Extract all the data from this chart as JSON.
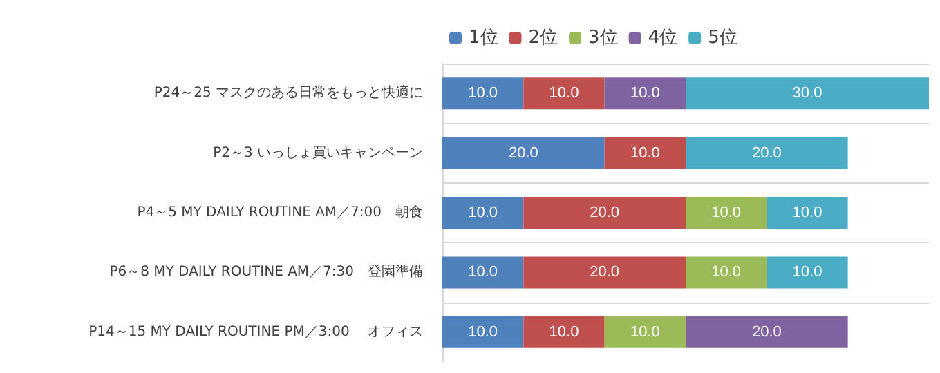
{
  "chart_data": {
    "type": "bar",
    "orientation": "horizontal",
    "stacked": true,
    "legend": "top",
    "grid": "y",
    "categories": [
      "P24～25 マスクのある日常をもっと快適に",
      "P2～3 いっしょ買いキャンペーン",
      "P4～5 MY DAILY ROUTINE AM／7:00　朝食",
      "P6～8 MY DAILY ROUTINE AM／7:30　登園準備",
      "P14～15 MY DAILY ROUTINE PM／3:00　 オフィス"
    ],
    "series": [
      {
        "name": "1位",
        "color": "#4f81bd",
        "values": [
          10,
          20,
          10,
          10,
          10
        ],
        "value_labels": [
          "10.0",
          "20.0",
          "10.0",
          "10.0",
          "10.0"
        ]
      },
      {
        "name": "2位",
        "color": "#c0504d",
        "values": [
          10,
          10,
          20,
          20,
          10
        ],
        "value_labels": [
          "10.0",
          "10.0",
          "20.0",
          "20.0",
          "10.0"
        ]
      },
      {
        "name": "3位",
        "color": "#9bbb59",
        "values": [
          null,
          null,
          10,
          10,
          10
        ],
        "value_labels": [
          null,
          null,
          "10.0",
          "10.0",
          "10.0"
        ]
      },
      {
        "name": "4位",
        "color": "#8064a2",
        "values": [
          10,
          null,
          null,
          null,
          20
        ],
        "value_labels": [
          "10.0",
          null,
          null,
          null,
          "20.0"
        ]
      },
      {
        "name": "5位",
        "color": "#4bacc6",
        "values": [
          30,
          20,
          10,
          10,
          null
        ],
        "value_labels": [
          "30.0",
          "20.0",
          "10.0",
          "10.0",
          null
        ]
      }
    ]
  }
}
